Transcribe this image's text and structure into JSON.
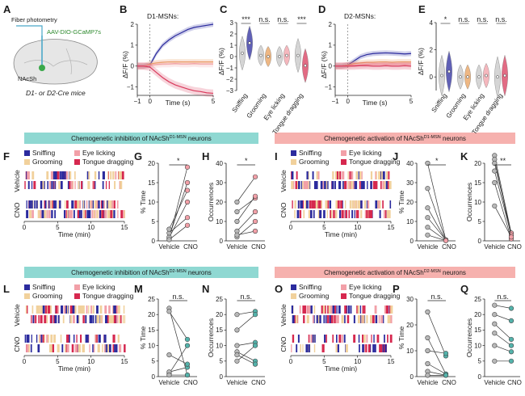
{
  "colors": {
    "blue": "#2b2b9e",
    "red": "#d93a5c",
    "orange": "#e9a05a",
    "pink": "#f2a0a8",
    "grey": "#9a9a9a",
    "teal": "#54b3ab",
    "teal_banner": "#8fd8d2",
    "pink_banner": "#f6b1ae",
    "sniff": "#2b2b9e",
    "groom": "#f1d19c",
    "eye": "#f2a0a8",
    "tongue": "#d6284f"
  },
  "panelA": {
    "letter": "A",
    "fiber": "Fiber photometry",
    "virus": "AAV-DIO-GCaMP7s",
    "region": "NAcSh",
    "caption": "D1- or D2-Cre mice"
  },
  "panelB": {
    "letter": "B",
    "title": "D1-MSNs:",
    "ylabel": "ΔF/F (%)",
    "xlabel": "Time (s)",
    "xticks": [
      "−1",
      "0",
      "5"
    ],
    "yticks": [
      "2",
      "1",
      "0",
      "−1"
    ]
  },
  "panelC": {
    "letter": "C",
    "ylabel": "ΔF/F (%)",
    "yticks": [
      "3",
      "2",
      "1",
      "0",
      "−1",
      "−2",
      "−3"
    ],
    "categories": [
      "Sniffing",
      "Grooming",
      "Eye licking",
      "Tongue dragging"
    ],
    "sig": [
      "***",
      "n.s.",
      "n.s.",
      "***"
    ]
  },
  "panelD": {
    "letter": "D",
    "title": "D2-MSNs:",
    "ylabel": "ΔF/F (%)",
    "xlabel": "Time (s)",
    "xticks": [
      "−1",
      "0",
      "5"
    ],
    "yticks": [
      "2",
      "1",
      "0",
      "−1"
    ]
  },
  "panelE": {
    "letter": "E",
    "ylabel": "ΔF/F (%)",
    "yticks": [
      "4",
      "2",
      "0"
    ],
    "categories": [
      "Sniffing",
      "Grooming",
      "Eye licking",
      "Tongue dragging"
    ],
    "sig": [
      "*",
      "n.s.",
      "n.s.",
      "n.s."
    ]
  },
  "banners": {
    "top_left": "Chemogenetic inhibition of NAcSh",
    "top_left_sup": "D1-MSN",
    "top_left_tail": " neurons",
    "top_right": "Chemogenetic activation of NAcSh",
    "top_right_sup": "D1-MSN",
    "top_right_tail": " neurons",
    "bot_left": "Chemogenetic inhibition of NAcSh",
    "bot_left_sup": "D2-MSN",
    "bot_left_tail": " neurons",
    "bot_right": "Chemogenetic activation of NAcSh",
    "bot_right_sup": "D2-MSN",
    "bot_right_tail": " neurons"
  },
  "legend": {
    "sniffing": "Sniffing",
    "eye": "Eye licking",
    "grooming": "Grooming",
    "tongue": "Tongue dragging"
  },
  "raster": {
    "xlabel": "Time (min)",
    "xticks": [
      "0",
      "5",
      "10",
      "15"
    ],
    "vehicle": "Vehicle",
    "cno": "CNO"
  },
  "dots": {
    "xcats": [
      "Vehicle",
      "CNO"
    ],
    "time_label": "% Time",
    "occ_label": "Occurrences"
  },
  "chart_data": [
    {
      "panel": "B",
      "type": "line",
      "title": "D1-MSNs:",
      "xlabel": "Time (s)",
      "ylabel": "ΔF/F (%)",
      "xlim": [
        -1,
        5
      ],
      "ylim": [
        -1.4,
        2
      ],
      "x": [
        -1,
        -0.5,
        0,
        0.5,
        1,
        1.5,
        2,
        2.5,
        3,
        3.5,
        4,
        4.5,
        5
      ],
      "series": [
        {
          "color": "blue",
          "values": [
            0,
            0,
            0.05,
            0.6,
            1.0,
            1.25,
            1.45,
            1.6,
            1.75,
            1.85,
            1.9,
            1.95,
            2.0
          ]
        },
        {
          "color": "orange",
          "values": [
            0,
            0,
            0.1,
            0.15,
            0.18,
            0.2,
            0.2,
            0.2,
            0.2,
            0.2,
            0.2,
            0.2,
            0.2
          ]
        },
        {
          "color": "pink",
          "values": [
            0,
            0,
            0.05,
            0.08,
            0.1,
            0.1,
            0.12,
            0.1,
            0.1,
            0.12,
            0.1,
            0.1,
            0.1
          ]
        },
        {
          "color": "red",
          "values": [
            0,
            0,
            -0.05,
            -0.3,
            -0.55,
            -0.75,
            -0.9,
            -1.0,
            -1.1,
            -1.18,
            -1.22,
            -1.28,
            -1.3
          ]
        }
      ]
    },
    {
      "panel": "C",
      "type": "violin",
      "ylabel": "ΔF/F (%)",
      "ylim": [
        -3,
        3
      ],
      "categories": [
        "Sniffing",
        "Grooming",
        "Eye licking",
        "Tongue dragging"
      ],
      "series": [
        {
          "name": "baseline",
          "values": [
            0.3,
            0.1,
            0.0,
            0.1
          ]
        },
        {
          "name": "behavior",
          "values": [
            1.2,
            0.0,
            0.1,
            -0.8
          ]
        }
      ]
    },
    {
      "panel": "D",
      "type": "line",
      "title": "D2-MSNs:",
      "xlabel": "Time (s)",
      "ylabel": "ΔF/F (%)",
      "xlim": [
        -1,
        5
      ],
      "ylim": [
        -1.4,
        2
      ],
      "x": [
        -1,
        -0.5,
        0,
        0.5,
        1,
        1.5,
        2,
        2.5,
        3,
        3.5,
        4,
        4.5,
        5
      ],
      "series": [
        {
          "color": "blue",
          "values": [
            0,
            0,
            0.05,
            0.25,
            0.45,
            0.55,
            0.6,
            0.62,
            0.63,
            0.62,
            0.6,
            0.58,
            0.6
          ]
        },
        {
          "color": "orange",
          "values": [
            0,
            0,
            0.05,
            0.12,
            0.15,
            0.18,
            0.18,
            0.2,
            0.2,
            0.18,
            0.2,
            0.2,
            0.2
          ]
        },
        {
          "color": "pink",
          "values": [
            0,
            0,
            0.02,
            0.05,
            0.05,
            0.08,
            0.1,
            0.1,
            0.1,
            0.1,
            0.1,
            0.1,
            0.1
          ]
        },
        {
          "color": "red",
          "values": [
            0,
            0,
            0.0,
            0.0,
            0.02,
            0.02,
            0.0,
            0.0,
            0.02,
            0.0,
            0.0,
            0.02,
            0.0
          ]
        }
      ]
    },
    {
      "panel": "E",
      "type": "violin",
      "ylabel": "ΔF/F (%)",
      "ylim": [
        -1,
        4
      ],
      "categories": [
        "Sniffing",
        "Grooming",
        "Eye licking",
        "Tongue dragging"
      ],
      "series": [
        {
          "name": "baseline",
          "values": [
            0.1,
            0.0,
            0.0,
            0.0
          ]
        },
        {
          "name": "behavior",
          "values": [
            0.4,
            0.0,
            0.1,
            0.1
          ]
        }
      ]
    },
    {
      "panel": "G",
      "type": "paired_dot",
      "ylabel": "% Time",
      "ylim": [
        0,
        20
      ],
      "yticks": [
        0,
        5,
        10,
        15,
        20
      ],
      "sig": "*",
      "cno_color": "pink",
      "pairs": [
        [
          0.5,
          19
        ],
        [
          0.8,
          10
        ],
        [
          1,
          15
        ],
        [
          2,
          6
        ],
        [
          3,
          13
        ],
        [
          0.3,
          4
        ]
      ]
    },
    {
      "panel": "H",
      "type": "paired_dot",
      "ylabel": "Occurrences",
      "ylim": [
        0,
        40
      ],
      "yticks": [
        0,
        10,
        20,
        30,
        40
      ],
      "sig": "*",
      "cno_color": "pink",
      "pairs": [
        [
          20,
          33
        ],
        [
          15,
          22
        ],
        [
          10,
          23
        ],
        [
          5,
          15
        ],
        [
          2,
          10
        ],
        [
          3,
          5
        ]
      ]
    },
    {
      "panel": "J",
      "type": "paired_dot",
      "ylabel": "% Time",
      "ylim": [
        0,
        40
      ],
      "yticks": [
        0,
        10,
        20,
        30,
        40
      ],
      "sig": "*",
      "cno_color": "pink",
      "pairs": [
        [
          40,
          0.5
        ],
        [
          27,
          0.3
        ],
        [
          17,
          0.2
        ],
        [
          12,
          0.5
        ],
        [
          7,
          0.2
        ],
        [
          3,
          0.1
        ]
      ]
    },
    {
      "panel": "K",
      "type": "paired_dot",
      "ylabel": "Occurrences",
      "ylim": [
        0,
        20
      ],
      "yticks": [
        0,
        5,
        10,
        15,
        20
      ],
      "sig": "**",
      "cno_color": "pink",
      "pairs": [
        [
          22,
          2
        ],
        [
          21,
          1
        ],
        [
          20,
          2
        ],
        [
          18,
          1.5
        ],
        [
          15,
          0.5
        ],
        [
          9,
          1
        ]
      ]
    },
    {
      "panel": "M",
      "type": "paired_dot",
      "ylabel": "% Time",
      "ylim": [
        0,
        25
      ],
      "yticks": [
        0,
        5,
        10,
        15,
        20,
        25
      ],
      "sig": "n.s.",
      "cno_color": "teal",
      "pairs": [
        [
          22,
          0.5
        ],
        [
          21,
          12
        ],
        [
          1,
          10
        ],
        [
          1.5,
          3
        ],
        [
          7,
          4
        ],
        [
          0.5,
          0.5
        ]
      ]
    },
    {
      "panel": "N",
      "type": "paired_dot",
      "ylabel": "Occurrences",
      "ylim": [
        0,
        25
      ],
      "yticks": [
        0,
        5,
        10,
        15,
        20,
        25
      ],
      "sig": "n.s.",
      "cno_color": "teal",
      "pairs": [
        [
          20,
          21
        ],
        [
          15,
          20
        ],
        [
          10,
          11
        ],
        [
          8,
          5
        ],
        [
          5,
          10
        ],
        [
          7,
          4
        ]
      ]
    },
    {
      "panel": "P",
      "type": "paired_dot",
      "ylabel": "% Time",
      "ylim": [
        0,
        30
      ],
      "yticks": [
        0,
        10,
        20,
        30
      ],
      "sig": "n.s.",
      "cno_color": "teal",
      "pairs": [
        [
          25,
          8
        ],
        [
          15,
          1
        ],
        [
          10,
          9
        ],
        [
          5,
          1
        ],
        [
          2,
          0.5
        ],
        [
          0.5,
          0.5
        ]
      ]
    },
    {
      "panel": "Q",
      "type": "paired_dot",
      "ylabel": "Occurrences",
      "ylim": [
        0,
        25
      ],
      "yticks": [
        0,
        5,
        10,
        15,
        20,
        25
      ],
      "sig": "n.s.",
      "cno_color": "teal",
      "pairs": [
        [
          23,
          22
        ],
        [
          20,
          18
        ],
        [
          17,
          12
        ],
        [
          14,
          10
        ],
        [
          10,
          8
        ],
        [
          5,
          5
        ]
      ]
    }
  ]
}
